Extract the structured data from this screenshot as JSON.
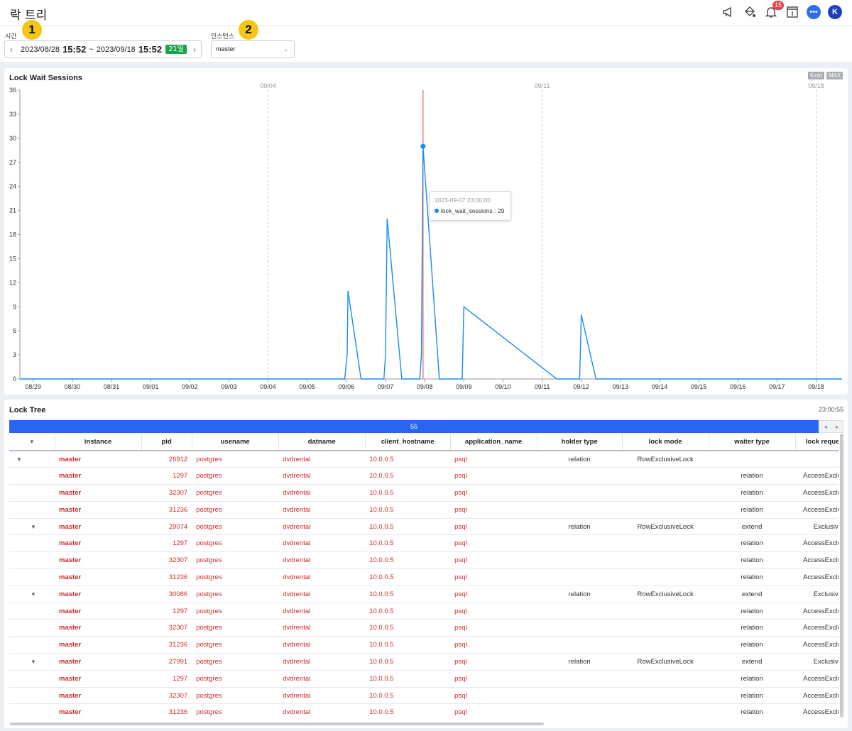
{
  "header": {
    "title": "락 트리",
    "notification_count": "15",
    "avatar_letter": "K"
  },
  "filters": {
    "time_label": "시간",
    "time_marker": "1",
    "time_start_date": "2023/08/28",
    "time_start_clock": "15:52",
    "time_sep": "~",
    "time_end_date": "2023/09/18",
    "time_end_clock": "15:52",
    "time_span": "21일",
    "instance_label": "인스턴스",
    "instance_marker": "2",
    "instance_value": "master"
  },
  "chart_panel": {
    "title": "Lock Wait Sessions",
    "tag_interval": "5min",
    "tag_agg": "MAX",
    "tooltip_time": "2023-09-07 23:00:00",
    "tooltip_label": "lock_wait_sessions : 29"
  },
  "chart_data": {
    "type": "line",
    "title": "Lock Wait Sessions",
    "xlabel": "",
    "ylabel": "",
    "ylim": [
      0,
      36
    ],
    "yticks": [
      0,
      3,
      6,
      9,
      12,
      15,
      18,
      21,
      24,
      27,
      30,
      33,
      36
    ],
    "xrange": [
      "2023-08-28 15:52",
      "2023-09-18 15:52"
    ],
    "xticks": [
      "08/29",
      "08/30",
      "08/31",
      "09/01",
      "09/02",
      "09/03",
      "09/04",
      "09/05",
      "09/06",
      "09/07",
      "09/08",
      "09/09",
      "09/10",
      "09/11",
      "09/12",
      "09/13",
      "09/14",
      "09/15",
      "09/16",
      "09/17",
      "09/18"
    ],
    "top_labels": [
      "09/04",
      "09/11",
      "09/18"
    ],
    "grid": "dashed vertical lines at 09/04, 09/11, 09/18",
    "series": [
      {
        "name": "lock_wait_sessions",
        "color": "#1a8cf0",
        "points": [
          [
            "2023-08-28 15:52",
            0
          ],
          [
            "2023-09-05 23:00",
            0
          ],
          [
            "2023-09-06 00:30",
            3
          ],
          [
            "2023-09-06 01:00",
            11
          ],
          [
            "2023-09-06 09:00",
            0
          ],
          [
            "2023-09-06 23:00",
            0
          ],
          [
            "2023-09-07 00:00",
            3
          ],
          [
            "2023-09-07 01:00",
            20
          ],
          [
            "2023-09-07 10:00",
            0
          ],
          [
            "2023-09-07 21:00",
            0
          ],
          [
            "2023-09-07 22:00",
            3
          ],
          [
            "2023-09-07 23:00",
            29
          ],
          [
            "2023-09-08 09:00",
            0
          ],
          [
            "2023-09-08 23:00",
            0
          ],
          [
            "2023-09-09 00:00",
            9
          ],
          [
            "2023-09-11 09:00",
            0
          ],
          [
            "2023-09-11 23:00",
            0
          ],
          [
            "2023-09-12 00:00",
            8
          ],
          [
            "2023-09-12 09:00",
            0
          ],
          [
            "2023-09-18 15:52",
            0
          ]
        ]
      }
    ],
    "highlight": {
      "x": "2023-09-07 23:00",
      "y": 29,
      "line_color": "#f08080"
    }
  },
  "tree_panel": {
    "title": "Lock Tree",
    "time": "23:00:55",
    "count": "55",
    "columns": [
      "instance",
      "pid",
      "usename",
      "datname",
      "client_hostname",
      "application_name",
      "holder type",
      "lock mode",
      "waiter type",
      "lock reques"
    ],
    "rows": [
      {
        "tri": "▼",
        "indent": 0,
        "instance": "master",
        "pid": "26912",
        "usename": "postgres",
        "datname": "dvdrental",
        "host": "10.0.0.5",
        "app": "psql",
        "holder": "relation",
        "mode": "RowExclusiveLock",
        "waiter": "",
        "req": ""
      },
      {
        "tri": "",
        "indent": 0,
        "instance": "master",
        "pid": "1297",
        "usename": "postgres",
        "datname": "dvdrental",
        "host": "10.0.0.5",
        "app": "psql",
        "holder": "",
        "mode": "",
        "waiter": "relation",
        "req": "AccessExclusiv"
      },
      {
        "tri": "",
        "indent": 0,
        "instance": "master",
        "pid": "32307",
        "usename": "postgres",
        "datname": "dvdrental",
        "host": "10.0.0.5",
        "app": "psql",
        "holder": "",
        "mode": "",
        "waiter": "relation",
        "req": "AccessExclusiv"
      },
      {
        "tri": "",
        "indent": 0,
        "instance": "master",
        "pid": "31236",
        "usename": "postgres",
        "datname": "dvdrental",
        "host": "10.0.0.5",
        "app": "psql",
        "holder": "",
        "mode": "",
        "waiter": "relation",
        "req": "AccessExclusiv"
      },
      {
        "tri": "▼",
        "indent": 1,
        "instance": "master",
        "pid": "29074",
        "usename": "postgres",
        "datname": "dvdrental",
        "host": "10.0.0.5",
        "app": "psql",
        "holder": "relation",
        "mode": "RowExclusiveLock",
        "waiter": "extend",
        "req": "ExclusiveLo"
      },
      {
        "tri": "",
        "indent": 0,
        "instance": "master",
        "pid": "1297",
        "usename": "postgres",
        "datname": "dvdrental",
        "host": "10.0.0.5",
        "app": "psql",
        "holder": "",
        "mode": "",
        "waiter": "relation",
        "req": "AccessExclusiv"
      },
      {
        "tri": "",
        "indent": 0,
        "instance": "master",
        "pid": "32307",
        "usename": "postgres",
        "datname": "dvdrental",
        "host": "10.0.0.5",
        "app": "psql",
        "holder": "",
        "mode": "",
        "waiter": "relation",
        "req": "AccessExclusiv"
      },
      {
        "tri": "",
        "indent": 0,
        "instance": "master",
        "pid": "31236",
        "usename": "postgres",
        "datname": "dvdrental",
        "host": "10.0.0.5",
        "app": "psql",
        "holder": "",
        "mode": "",
        "waiter": "relation",
        "req": "AccessExclusiv"
      },
      {
        "tri": "▼",
        "indent": 1,
        "instance": "master",
        "pid": "30086",
        "usename": "postgres",
        "datname": "dvdrental",
        "host": "10.0.0.5",
        "app": "psql",
        "holder": "relation",
        "mode": "RowExclusiveLock",
        "waiter": "extend",
        "req": "ExclusiveLo"
      },
      {
        "tri": "",
        "indent": 0,
        "instance": "master",
        "pid": "1297",
        "usename": "postgres",
        "datname": "dvdrental",
        "host": "10.0.0.5",
        "app": "psql",
        "holder": "",
        "mode": "",
        "waiter": "relation",
        "req": "AccessExclusiv"
      },
      {
        "tri": "",
        "indent": 0,
        "instance": "master",
        "pid": "32307",
        "usename": "postgres",
        "datname": "dvdrental",
        "host": "10.0.0.5",
        "app": "psql",
        "holder": "",
        "mode": "",
        "waiter": "relation",
        "req": "AccessExclusiv"
      },
      {
        "tri": "",
        "indent": 0,
        "instance": "master",
        "pid": "31236",
        "usename": "postgres",
        "datname": "dvdrental",
        "host": "10.0.0.5",
        "app": "psql",
        "holder": "",
        "mode": "",
        "waiter": "relation",
        "req": "AccessExclusiv"
      },
      {
        "tri": "▼",
        "indent": 1,
        "instance": "master",
        "pid": "27991",
        "usename": "postgres",
        "datname": "dvdrental",
        "host": "10.0.0.5",
        "app": "psql",
        "holder": "relation",
        "mode": "RowExclusiveLock",
        "waiter": "extend",
        "req": "ExclusiveLo"
      },
      {
        "tri": "",
        "indent": 0,
        "instance": "master",
        "pid": "1297",
        "usename": "postgres",
        "datname": "dvdrental",
        "host": "10.0.0.5",
        "app": "psql",
        "holder": "",
        "mode": "",
        "waiter": "relation",
        "req": "AccessExclusiv"
      },
      {
        "tri": "",
        "indent": 0,
        "instance": "master",
        "pid": "32307",
        "usename": "postgres",
        "datname": "dvdrental",
        "host": "10.0.0.5",
        "app": "psql",
        "holder": "",
        "mode": "",
        "waiter": "relation",
        "req": "AccessExclusiv"
      },
      {
        "tri": "",
        "indent": 0,
        "instance": "master",
        "pid": "31236",
        "usename": "postgres",
        "datname": "dvdrental",
        "host": "10.0.0.5",
        "app": "psql",
        "holder": "",
        "mode": "",
        "waiter": "relation",
        "req": "AccessExclusiv"
      }
    ]
  }
}
